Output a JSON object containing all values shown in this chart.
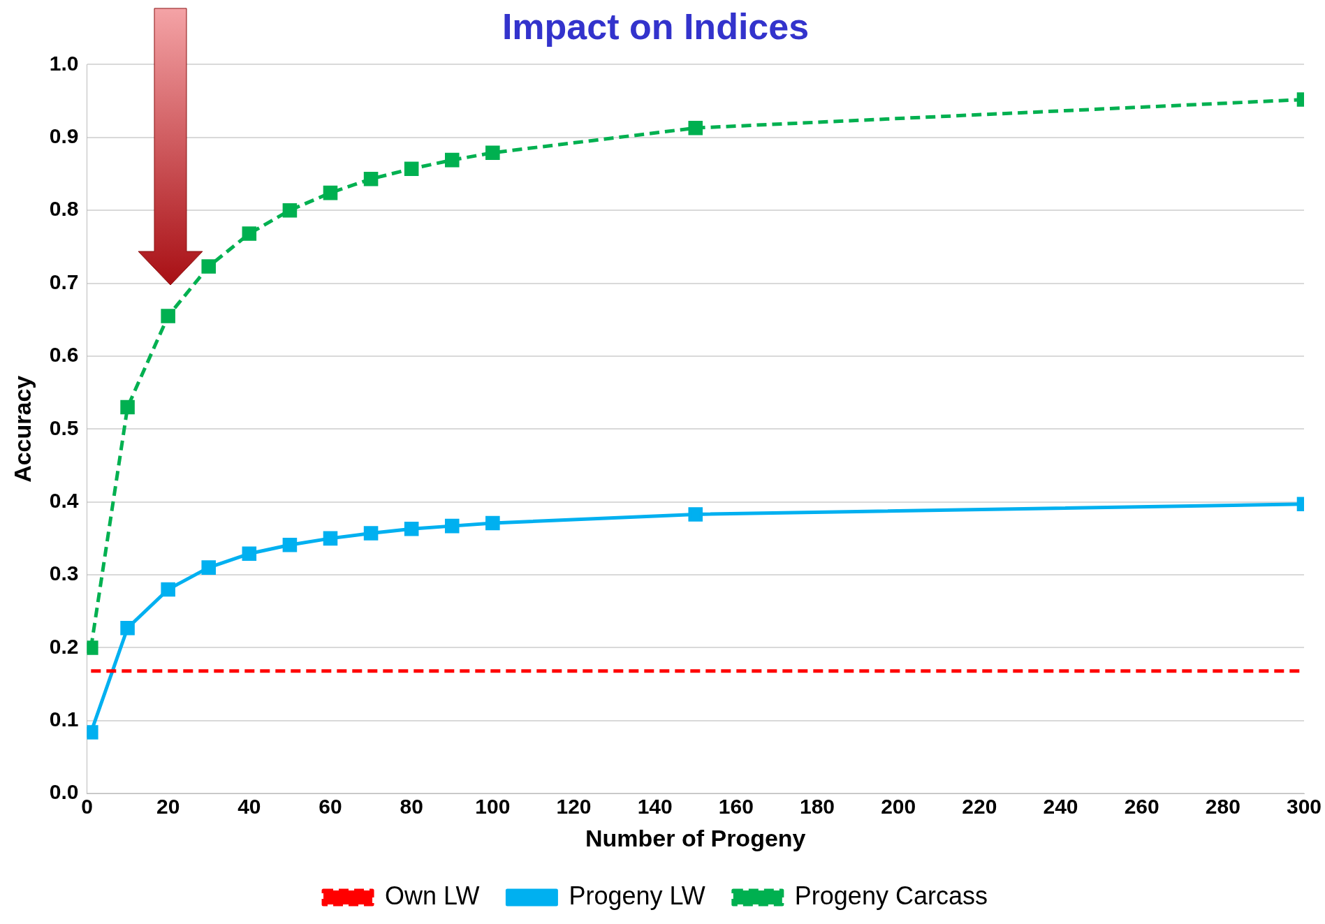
{
  "chart_data": {
    "type": "line",
    "title": "Impact on Indices",
    "xlabel": "Number of Progeny",
    "ylabel": "Accuracy",
    "x": [
      1,
      10,
      20,
      30,
      40,
      50,
      60,
      70,
      80,
      90,
      100,
      150,
      300
    ],
    "series": [
      {
        "name": "Own LW",
        "color": "#ff0000",
        "line_style": "dashed",
        "marker": "none",
        "values": [
          0.168,
          0.168,
          0.168,
          0.168,
          0.168,
          0.168,
          0.168,
          0.168,
          0.168,
          0.168,
          0.168,
          0.168,
          0.168
        ]
      },
      {
        "name": "Progeny LW",
        "color": "#00b0f0",
        "line_style": "solid",
        "marker": "square",
        "values": [
          0.084,
          0.227,
          0.28,
          0.31,
          0.329,
          0.341,
          0.35,
          0.357,
          0.363,
          0.367,
          0.371,
          0.383,
          0.397
        ]
      },
      {
        "name": "Progeny Carcass",
        "color": "#00b050",
        "line_style": "dashed",
        "marker": "square",
        "values": [
          0.2,
          0.53,
          0.655,
          0.723,
          0.768,
          0.8,
          0.824,
          0.843,
          0.857,
          0.869,
          0.879,
          0.913,
          0.952
        ]
      }
    ],
    "xlim": [
      0,
      300
    ],
    "xticks": [
      0,
      20,
      40,
      60,
      80,
      100,
      120,
      140,
      160,
      180,
      200,
      220,
      240,
      260,
      280,
      300
    ],
    "ylim": [
      0,
      1
    ],
    "yticks": [
      {
        "value": 0,
        "label": "0.0"
      },
      {
        "value": 0.1,
        "label": "0.1"
      },
      {
        "value": 0.2,
        "label": "0.2"
      },
      {
        "value": 0.3,
        "label": "0.3"
      },
      {
        "value": 0.4,
        "label": "0.4"
      },
      {
        "value": 0.5,
        "label": "0.5"
      },
      {
        "value": 0.6,
        "label": "0.6"
      },
      {
        "value": 0.7,
        "label": "0.7"
      },
      {
        "value": 0.8,
        "label": "0.8"
      },
      {
        "value": 0.9,
        "label": "0.9"
      },
      {
        "value": 1,
        "label": "1.0"
      }
    ],
    "grid": "y",
    "legend": "bottom"
  }
}
